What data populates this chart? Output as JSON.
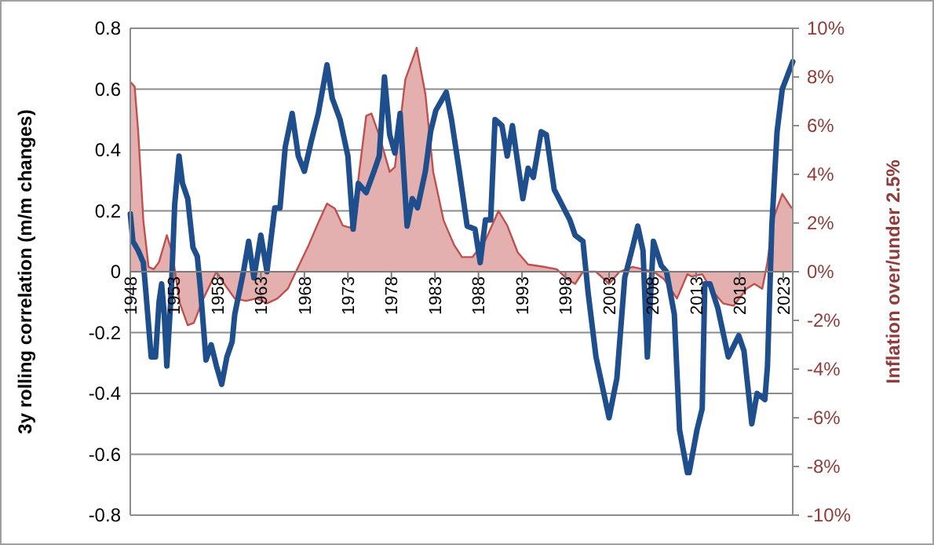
{
  "chart_data": {
    "type": "line",
    "ylabel": "3y rolling correlation (m/m changes)",
    "y2label": "Inflation over/under 2.5%",
    "xlim": [
      1948,
      2024.1
    ],
    "xticks": [
      1948,
      1953,
      1958,
      1963,
      1968,
      1973,
      1978,
      1983,
      1988,
      1993,
      1998,
      2003,
      2008,
      2013,
      2018,
      2023
    ],
    "ylim": [
      -0.8,
      0.8
    ],
    "yticks": [
      -0.8,
      -0.6,
      -0.4,
      -0.2,
      0,
      0.2,
      0.4,
      0.6,
      0.8
    ],
    "y2lim": [
      -10,
      10
    ],
    "y2ticks": [
      {
        "value": -10,
        "label": "-10%"
      },
      {
        "value": -8,
        "label": "-8%"
      },
      {
        "value": -6,
        "label": "-6%"
      },
      {
        "value": -4,
        "label": "-4%"
      },
      {
        "value": -2,
        "label": "-2%"
      },
      {
        "value": 0,
        "label": "0%"
      },
      {
        "value": 2,
        "label": "2%"
      },
      {
        "value": 4,
        "label": "4%"
      },
      {
        "value": 6,
        "label": "6%"
      },
      {
        "value": 8,
        "label": "8%"
      },
      {
        "value": 10,
        "label": "10%"
      }
    ],
    "grid": "y",
    "marker": "none",
    "series": [
      {
        "type": "area",
        "axis": "y2",
        "color": "#c0504d",
        "x": [
          1948.0,
          1948.5,
          1948.9,
          1949.5,
          1950.1,
          1950.7,
          1951.3,
          1952.2,
          1952.8,
          1953.7,
          1954.6,
          1955.3,
          1956.4,
          1957.9,
          1958.8,
          1960.0,
          1961.3,
          1962.5,
          1963.7,
          1964.9,
          1966.1,
          1967.3,
          1968.5,
          1969.7,
          1970.6,
          1971.5,
          1972.4,
          1973.3,
          1974.2,
          1975.1,
          1975.7,
          1976.6,
          1977.8,
          1978.4,
          1979.6,
          1980.9,
          1981.9,
          1982.8,
          1984.0,
          1985.2,
          1986.1,
          1987.3,
          1988.8,
          1990.3,
          1991.3,
          1992.5,
          1993.7,
          1995.5,
          1997.0,
          1998.2,
          1999.1,
          2000.0,
          2001.5,
          2003.0,
          2004.2,
          2005.7,
          2006.9,
          2008.1,
          2009.3,
          2010.8,
          2012.0,
          2012.5,
          2013.7,
          2014.9,
          2016.1,
          2017.3,
          2018.8,
          2019.7,
          2020.6,
          2021.2,
          2021.8,
          2022.9,
          2024.0
        ],
        "values": [
          7.8,
          7.6,
          5.8,
          2.1,
          0.2,
          0.1,
          0.4,
          1.5,
          0.8,
          -1.3,
          -2.2,
          -2.1,
          -1.1,
          0.0,
          -0.5,
          -1.1,
          -1.2,
          -1.1,
          -1.3,
          -1.1,
          -0.7,
          0.2,
          1.1,
          2.1,
          2.8,
          2.6,
          1.9,
          1.8,
          3.8,
          6.4,
          6.5,
          5.6,
          4.1,
          4.3,
          7.9,
          9.2,
          7.3,
          4.1,
          2.1,
          1.1,
          0.6,
          0.6,
          1.3,
          2.5,
          1.9,
          0.8,
          0.3,
          0.2,
          0.1,
          -0.3,
          -0.5,
          0.0,
          0.0,
          -0.5,
          0.0,
          0.2,
          0.1,
          0.0,
          -0.3,
          -1.1,
          -0.1,
          -0.2,
          -0.1,
          -0.8,
          -1.3,
          -1.4,
          -0.7,
          -0.5,
          -0.7,
          0.4,
          2.1,
          3.2,
          2.6
        ]
      },
      {
        "type": "line",
        "axis": "y",
        "color": "#1f4e8c",
        "x": [
          1948.0,
          1948.3,
          1948.9,
          1949.5,
          1949.8,
          1950.4,
          1950.9,
          1951.3,
          1951.6,
          1951.9,
          1952.2,
          1952.7,
          1953.1,
          1953.6,
          1954.0,
          1954.6,
          1955.2,
          1955.7,
          1956.1,
          1956.7,
          1957.3,
          1957.9,
          1958.5,
          1959.1,
          1959.7,
          1960.0,
          1961.0,
          1961.6,
          1962.2,
          1963.0,
          1963.7,
          1964.6,
          1965.2,
          1965.8,
          1966.6,
          1967.3,
          1968.0,
          1968.8,
          1969.6,
          1970.6,
          1971.2,
          1972.1,
          1973.0,
          1973.6,
          1974.2,
          1975.1,
          1976.0,
          1976.6,
          1977.2,
          1977.8,
          1978.4,
          1979.0,
          1979.8,
          1980.4,
          1981.0,
          1981.9,
          1982.5,
          1983.1,
          1983.7,
          1984.3,
          1984.9,
          1985.8,
          1986.7,
          1987.6,
          1988.2,
          1988.8,
          1989.4,
          1989.9,
          1990.7,
          1991.3,
          1991.9,
          1992.5,
          1993.1,
          1993.7,
          1994.3,
          1995.2,
          1995.8,
          1996.7,
          1997.6,
          1998.5,
          1999.1,
          2000.0,
          2000.6,
          2001.5,
          2002.4,
          2003.0,
          2003.9,
          2004.8,
          2005.7,
          2006.3,
          2006.9,
          2007.4,
          2008.1,
          2009.0,
          2009.6,
          2010.5,
          2011.1,
          2012.0,
          2012.2,
          2013.1,
          2013.7,
          2014.0,
          2014.6,
          2015.5,
          2016.7,
          2017.9,
          2018.5,
          2019.4,
          2020.0,
          2020.9,
          2021.2,
          2021.7,
          2022.3,
          2022.9,
          2023.7,
          2024.1
        ],
        "values": [
          0.19,
          0.1,
          0.07,
          0.03,
          -0.07,
          -0.28,
          -0.28,
          -0.1,
          -0.04,
          -0.14,
          -0.31,
          -0.07,
          0.22,
          0.38,
          0.29,
          0.24,
          0.08,
          0.05,
          -0.07,
          -0.29,
          -0.24,
          -0.31,
          -0.37,
          -0.28,
          -0.23,
          -0.14,
          0.0,
          0.1,
          -0.02,
          0.12,
          0.0,
          0.21,
          0.21,
          0.41,
          0.52,
          0.38,
          0.33,
          0.43,
          0.52,
          0.68,
          0.57,
          0.5,
          0.38,
          0.14,
          0.29,
          0.26,
          0.33,
          0.38,
          0.64,
          0.45,
          0.39,
          0.52,
          0.15,
          0.24,
          0.21,
          0.33,
          0.46,
          0.53,
          0.56,
          0.59,
          0.5,
          0.33,
          0.15,
          0.14,
          0.03,
          0.17,
          0.17,
          0.5,
          0.48,
          0.38,
          0.48,
          0.36,
          0.24,
          0.34,
          0.31,
          0.46,
          0.45,
          0.27,
          0.22,
          0.17,
          0.12,
          0.1,
          -0.07,
          -0.28,
          -0.4,
          -0.48,
          -0.35,
          -0.02,
          0.08,
          0.15,
          0.07,
          -0.28,
          0.1,
          0.02,
          0.0,
          -0.14,
          -0.52,
          -0.66,
          -0.66,
          -0.52,
          -0.45,
          -0.04,
          -0.04,
          -0.12,
          -0.28,
          -0.21,
          -0.26,
          -0.5,
          -0.4,
          -0.42,
          -0.31,
          0.15,
          0.46,
          0.6,
          0.66,
          0.69
        ]
      }
    ]
  }
}
